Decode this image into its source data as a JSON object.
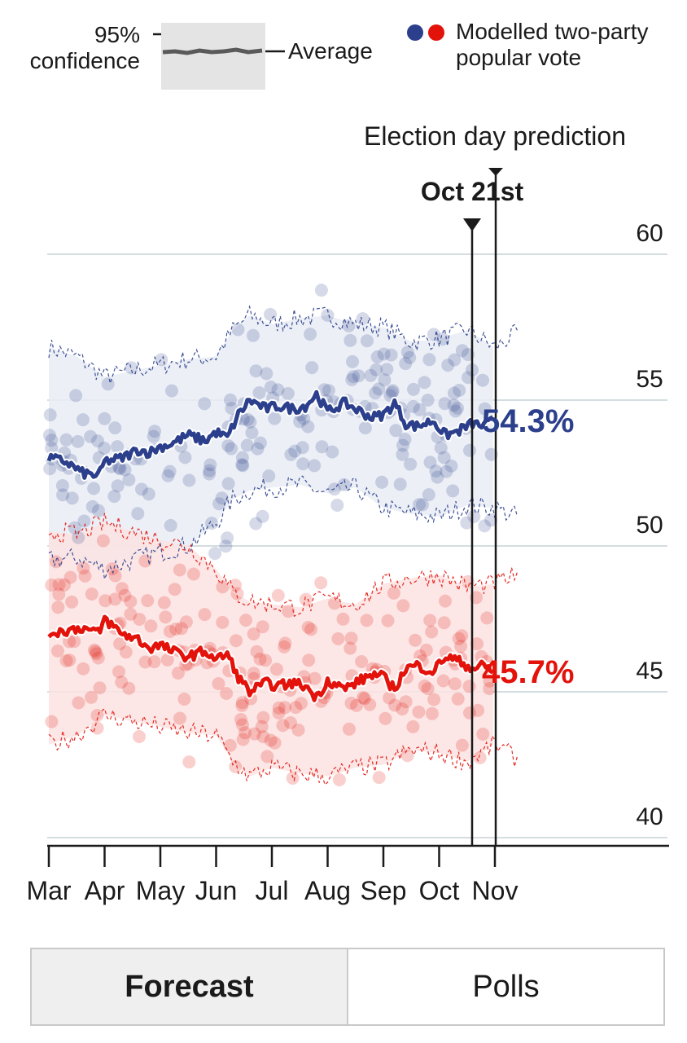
{
  "legend": {
    "confidence_label_1": "95%",
    "confidence_label_2": "confidence",
    "average_label": "Average",
    "dots_label_1": "Modelled two-party",
    "dots_label_2": "popular vote"
  },
  "annotation": {
    "prediction_label": "Election day prediction",
    "current_date_label": "Oct 21st"
  },
  "tabs": [
    {
      "label": "Forecast",
      "active": true
    },
    {
      "label": "Polls",
      "active": false
    }
  ],
  "colors": {
    "dem": "#2b3f8c",
    "rep": "#e3120b",
    "dem_band": "#e9ecf5",
    "rep_band": "#fbe3e2",
    "grid": "#d4dde0"
  },
  "chart_data": {
    "type": "line",
    "title": "",
    "xlabel": "",
    "ylabel": "",
    "ylim": [
      40,
      60
    ],
    "y_ticks": [
      40,
      45,
      50,
      55,
      60
    ],
    "x_ticks": [
      "Mar",
      "Apr",
      "May",
      "Jun",
      "Jul",
      "Aug",
      "Sep",
      "Oct",
      "Nov"
    ],
    "grid": "horizontal",
    "series": [
      {
        "end_label": "54.3%",
        "color": "#2b3f8c",
        "average": [
          [
            0,
            53.0
          ],
          [
            0.3,
            52.9
          ],
          [
            0.6,
            52.5
          ],
          [
            0.9,
            52.4
          ],
          [
            1.0,
            52.9
          ],
          [
            1.3,
            53.0
          ],
          [
            1.6,
            53.3
          ],
          [
            1.8,
            53.2
          ],
          [
            2.0,
            53.4
          ],
          [
            2.2,
            53.5
          ],
          [
            2.5,
            53.8
          ],
          [
            2.8,
            53.6
          ],
          [
            3.0,
            53.9
          ],
          [
            3.2,
            53.7
          ],
          [
            3.4,
            54.5
          ],
          [
            3.6,
            55.0
          ],
          [
            3.9,
            54.7
          ],
          [
            4.1,
            54.8
          ],
          [
            4.4,
            54.7
          ],
          [
            4.6,
            54.8
          ],
          [
            4.8,
            55.2
          ],
          [
            5.0,
            54.6
          ],
          [
            5.3,
            54.9
          ],
          [
            5.5,
            54.7
          ],
          [
            5.8,
            54.4
          ],
          [
            6.0,
            54.5
          ],
          [
            6.2,
            54.9
          ],
          [
            6.4,
            54.2
          ],
          [
            6.6,
            54.1
          ],
          [
            6.9,
            54.3
          ],
          [
            7.1,
            53.8
          ],
          [
            7.3,
            53.9
          ],
          [
            7.6,
            54.2
          ],
          [
            7.8,
            54.1
          ],
          [
            7.97,
            54.3
          ]
        ],
        "ci_upper": [
          [
            0,
            56.8
          ],
          [
            0.5,
            56.5
          ],
          [
            1.0,
            55.8
          ],
          [
            1.5,
            56.0
          ],
          [
            2.0,
            56.2
          ],
          [
            2.5,
            56.4
          ],
          [
            3.0,
            56.5
          ],
          [
            3.3,
            57.4
          ],
          [
            3.6,
            57.9
          ],
          [
            4.0,
            57.6
          ],
          [
            4.5,
            57.8
          ],
          [
            5.0,
            57.9
          ],
          [
            5.5,
            57.6
          ],
          [
            6.0,
            57.5
          ],
          [
            6.5,
            57.0
          ],
          [
            7.0,
            57.1
          ],
          [
            7.5,
            57.4
          ],
          [
            8.0,
            56.8
          ],
          [
            8.4,
            57.3
          ]
        ],
        "ci_lower": [
          [
            0,
            49.5
          ],
          [
            0.5,
            49.6
          ],
          [
            1.0,
            49.2
          ],
          [
            1.5,
            49.5
          ],
          [
            2.0,
            49.8
          ],
          [
            2.5,
            50.0
          ],
          [
            3.0,
            50.8
          ],
          [
            3.3,
            51.6
          ],
          [
            3.6,
            51.9
          ],
          [
            4.0,
            52.0
          ],
          [
            4.5,
            52.1
          ],
          [
            5.0,
            51.8
          ],
          [
            5.5,
            52.0
          ],
          [
            6.0,
            51.3
          ],
          [
            6.5,
            51.1
          ],
          [
            7.0,
            51.0
          ],
          [
            7.5,
            51.4
          ],
          [
            8.0,
            51.3
          ],
          [
            8.4,
            51.0
          ]
        ]
      },
      {
        "end_label": "45.7%",
        "color": "#e3120b",
        "average": [
          [
            0,
            47.0
          ],
          [
            0.3,
            47.1
          ],
          [
            0.6,
            47.2
          ],
          [
            0.9,
            47.0
          ],
          [
            1.0,
            47.5
          ],
          [
            1.3,
            47.0
          ],
          [
            1.6,
            46.8
          ],
          [
            1.8,
            46.5
          ],
          [
            2.0,
            46.6
          ],
          [
            2.2,
            46.4
          ],
          [
            2.5,
            46.2
          ],
          [
            2.8,
            46.4
          ],
          [
            3.0,
            46.1
          ],
          [
            3.2,
            46.3
          ],
          [
            3.4,
            45.5
          ],
          [
            3.6,
            45.0
          ],
          [
            3.9,
            45.3
          ],
          [
            4.1,
            45.2
          ],
          [
            4.4,
            45.3
          ],
          [
            4.6,
            45.2
          ],
          [
            4.8,
            44.8
          ],
          [
            5.0,
            45.4
          ],
          [
            5.3,
            45.1
          ],
          [
            5.5,
            45.3
          ],
          [
            5.8,
            45.6
          ],
          [
            6.0,
            45.5
          ],
          [
            6.2,
            45.1
          ],
          [
            6.4,
            45.8
          ],
          [
            6.6,
            45.9
          ],
          [
            6.9,
            45.7
          ],
          [
            7.1,
            46.2
          ],
          [
            7.3,
            46.1
          ],
          [
            7.6,
            45.8
          ],
          [
            7.8,
            45.9
          ],
          [
            7.97,
            45.7
          ]
        ],
        "ci_upper": [
          [
            0,
            50.5
          ],
          [
            0.5,
            50.4
          ],
          [
            1.0,
            50.8
          ],
          [
            1.5,
            50.5
          ],
          [
            2.0,
            50.2
          ],
          [
            2.5,
            50.0
          ],
          [
            3.0,
            49.2
          ],
          [
            3.3,
            48.4
          ],
          [
            3.6,
            48.1
          ],
          [
            4.0,
            48.0
          ],
          [
            4.5,
            47.9
          ],
          [
            5.0,
            48.2
          ],
          [
            5.5,
            48.0
          ],
          [
            6.0,
            48.7
          ],
          [
            6.5,
            48.9
          ],
          [
            7.0,
            49.0
          ],
          [
            7.5,
            48.6
          ],
          [
            8.0,
            48.7
          ],
          [
            8.4,
            49.0
          ]
        ],
        "ci_lower": [
          [
            0,
            43.2
          ],
          [
            0.5,
            43.5
          ],
          [
            1.0,
            44.2
          ],
          [
            1.5,
            44.0
          ],
          [
            2.0,
            43.8
          ],
          [
            2.5,
            43.6
          ],
          [
            3.0,
            43.5
          ],
          [
            3.3,
            42.6
          ],
          [
            3.6,
            42.1
          ],
          [
            4.0,
            42.4
          ],
          [
            4.5,
            42.2
          ],
          [
            5.0,
            42.1
          ],
          [
            5.5,
            42.4
          ],
          [
            6.0,
            42.5
          ],
          [
            6.5,
            43.0
          ],
          [
            7.0,
            42.9
          ],
          [
            7.5,
            42.6
          ],
          [
            8.0,
            43.2
          ],
          [
            8.4,
            42.7
          ]
        ]
      }
    ]
  }
}
